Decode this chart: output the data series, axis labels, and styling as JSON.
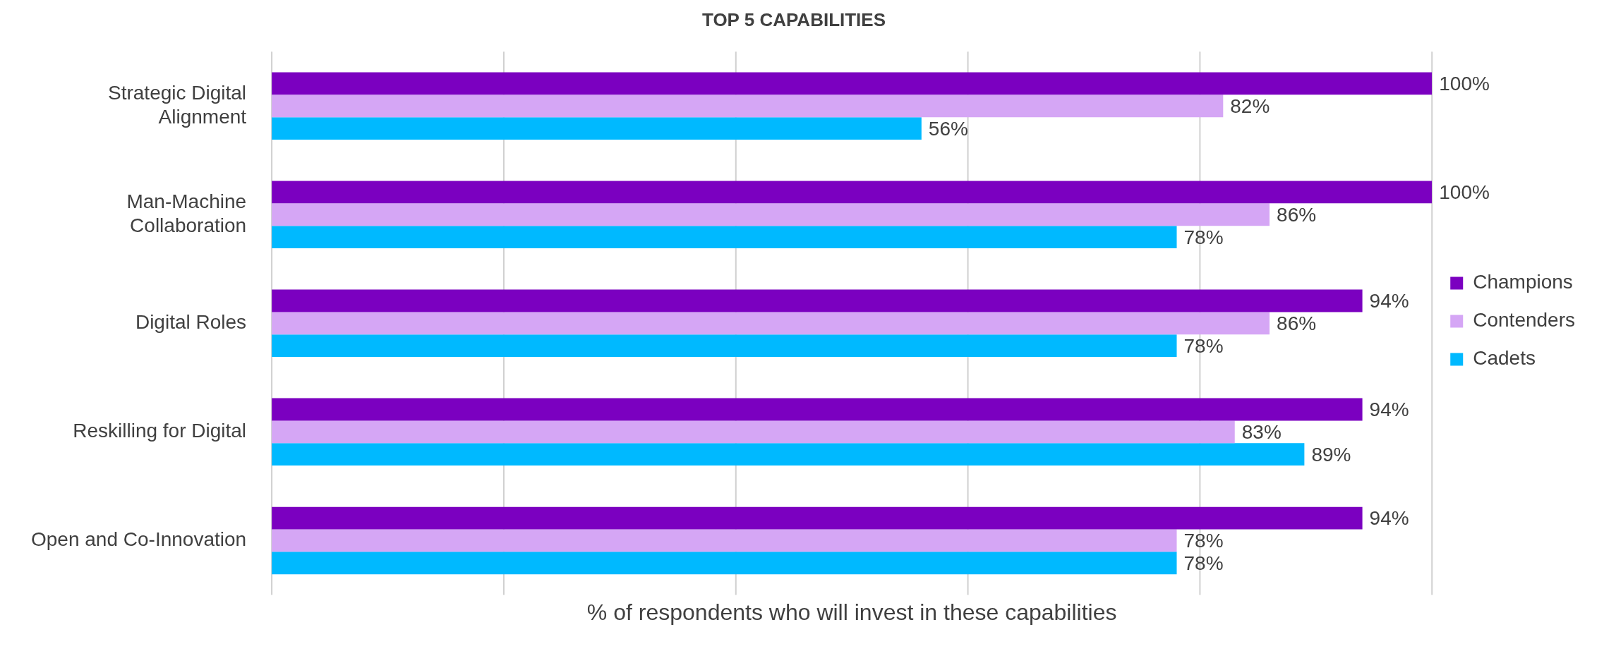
{
  "chart_data": {
    "type": "bar",
    "orientation": "horizontal",
    "title": "TOP 5 CAPABILITIES",
    "xlabel": "% of respondents who will invest in these capabilities",
    "categories": [
      "Strategic Digital Alignment",
      "Man-Machine Collaboration",
      "Digital Roles",
      "Reskilling for Digital",
      "Open and Co-Innovation"
    ],
    "series": [
      {
        "name": "Champions",
        "color": "#7b00c0",
        "values": [
          100,
          100,
          94,
          94,
          94
        ],
        "value_labels": [
          "100%",
          "100%",
          "94%",
          "94%",
          "94%"
        ]
      },
      {
        "name": "Contenders",
        "color": "#d5a6f5",
        "values": [
          82,
          86,
          86,
          83,
          78
        ],
        "value_labels": [
          "82%",
          "86%",
          "86%",
          "83%",
          "78%"
        ]
      },
      {
        "name": "Cadets",
        "color": "#00b9ff",
        "values": [
          56,
          78,
          78,
          89,
          78
        ],
        "value_labels": [
          "56%",
          "78%",
          "78%",
          "89%",
          "78%"
        ]
      }
    ],
    "xlim": [
      0,
      100
    ],
    "xticks": [
      {
        "value": 0,
        "label": null
      },
      {
        "value": 20,
        "label": null
      },
      {
        "value": 40,
        "label": null
      },
      {
        "value": 60,
        "label": null
      },
      {
        "value": 80,
        "label": null
      },
      {
        "value": 100,
        "label": null
      }
    ],
    "tick_labels": "y",
    "grid": "x",
    "legend": "right"
  }
}
